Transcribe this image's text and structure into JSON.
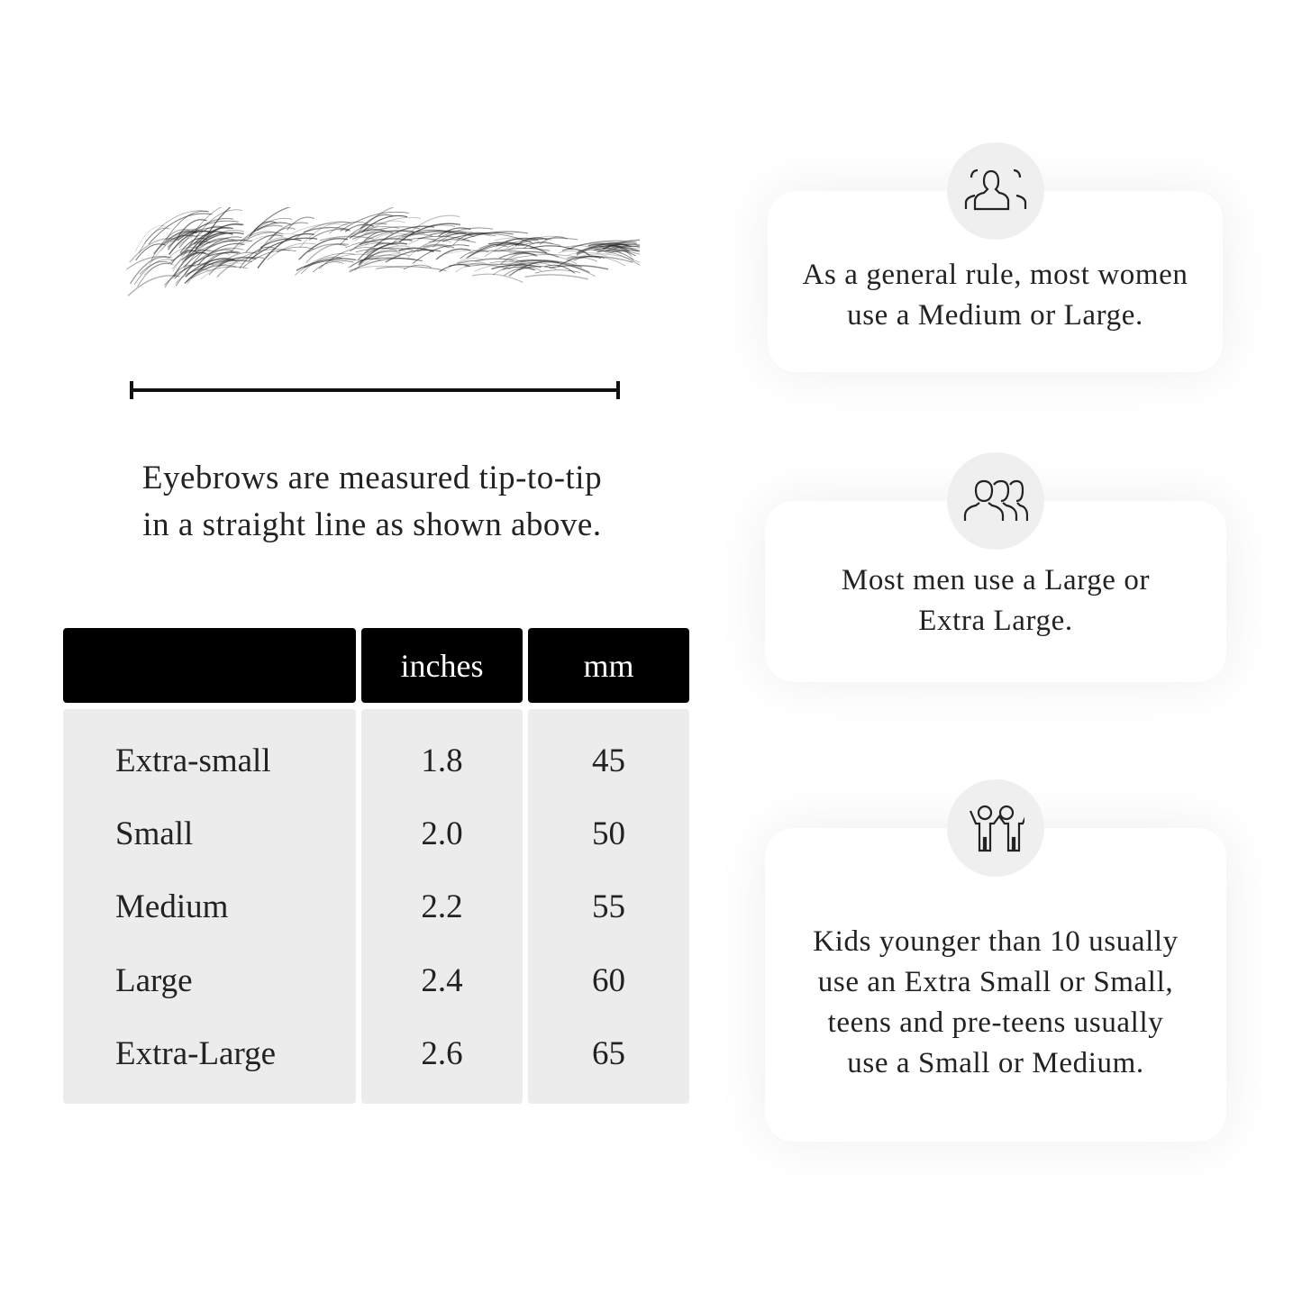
{
  "measurement_caption": [
    "Eyebrows are measured tip-to-tip",
    "in a straight line as shown above."
  ],
  "size_table": {
    "headers": [
      "",
      "inches",
      "mm"
    ],
    "rows": [
      {
        "size": "Extra-small",
        "inches": "1.8",
        "mm": "45"
      },
      {
        "size": "Small",
        "inches": "2.0",
        "mm": "50"
      },
      {
        "size": "Medium",
        "inches": "2.2",
        "mm": "55"
      },
      {
        "size": "Large",
        "inches": "2.4",
        "mm": "60"
      },
      {
        "size": "Extra-Large",
        "inches": "2.6",
        "mm": "65"
      }
    ]
  },
  "cards": [
    {
      "icon": "women-group-icon",
      "text": "As a general rule, most women use a Medium or Large."
    },
    {
      "icon": "men-group-icon",
      "text": "Most men use a Large or Extra Large."
    },
    {
      "icon": "kids-icon",
      "text": "Kids younger than 10 usually use an Extra Small or Small, teens and pre-teens usually use a Small or Medium."
    }
  ],
  "colors": {
    "header_bg": "#000000",
    "table_bg": "#ececec",
    "icon_circle": "#efefef"
  }
}
